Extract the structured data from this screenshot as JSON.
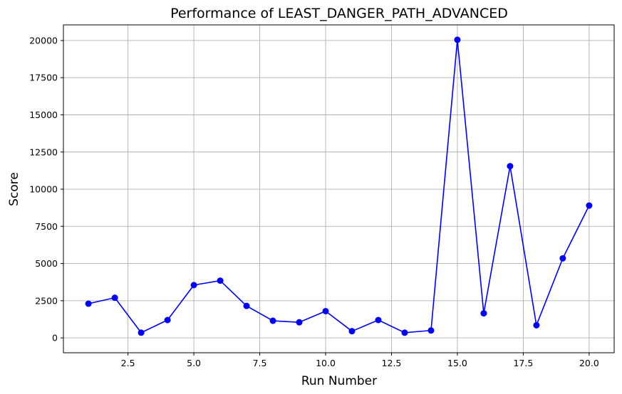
{
  "chart_data": {
    "type": "line",
    "title": "Performance of LEAST_DANGER_PATH_ADVANCED",
    "xlabel": "Run Number",
    "ylabel": "Score",
    "x": [
      1,
      2,
      3,
      4,
      5,
      6,
      7,
      8,
      9,
      10,
      11,
      12,
      13,
      14,
      15,
      16,
      17,
      18,
      19,
      20
    ],
    "series": [
      {
        "values": [
          2300,
          2700,
          350,
          1200,
          3550,
          3850,
          2150,
          1150,
          1050,
          1800,
          450,
          1200,
          350,
          500,
          20050,
          1650,
          11550,
          850,
          5350,
          8900
        ],
        "color": "#0000ff",
        "marker": "circle"
      }
    ],
    "xlim": [
      0.05,
      20.95
    ],
    "ylim": [
      -1000,
      21050
    ],
    "xticks": [
      2.5,
      5.0,
      7.5,
      10.0,
      12.5,
      15.0,
      17.5,
      20.0
    ],
    "xtick_labels": [
      "2.5",
      "5.0",
      "7.5",
      "10.0",
      "12.5",
      "15.0",
      "17.5",
      "20.0"
    ],
    "yticks": [
      0,
      2500,
      5000,
      7500,
      10000,
      12500,
      15000,
      17500,
      20000
    ],
    "ytick_labels": [
      "0",
      "2500",
      "5000",
      "7500",
      "10000",
      "12500",
      "15000",
      "17500",
      "20000"
    ],
    "grid": true,
    "grid_color": "#b0b0b0"
  }
}
